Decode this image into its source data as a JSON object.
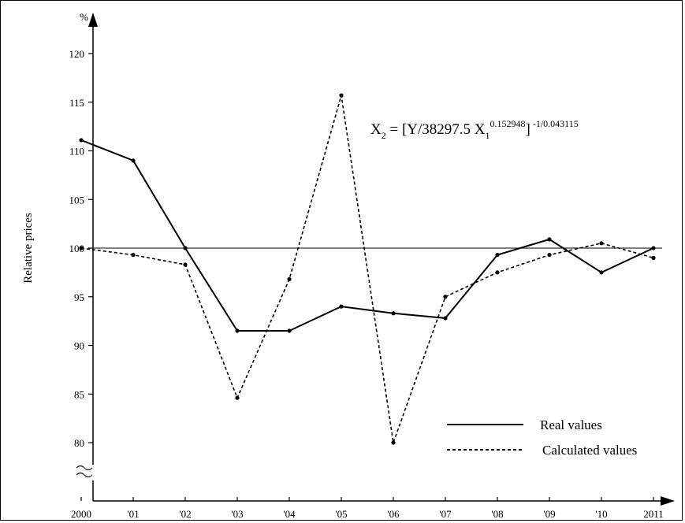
{
  "chart_data": {
    "type": "line",
    "title": "",
    "xlabel": "",
    "ylabel": "Relative prices",
    "y_unit": "%",
    "categories": [
      "2000",
      "'01",
      "'02",
      "'03",
      "'04",
      "'05",
      "'06",
      "'07",
      "'08",
      "'09",
      "'10",
      "2011"
    ],
    "ylim": [
      80,
      120
    ],
    "yticks": [
      80,
      85,
      90,
      95,
      100,
      105,
      110,
      115,
      120
    ],
    "axis_break": true,
    "reference_line": 100,
    "series": [
      {
        "name": "Real values",
        "style": "solid",
        "values": [
          111.1,
          109.0,
          100.0,
          91.5,
          91.5,
          94.0,
          93.3,
          92.8,
          99.3,
          100.9,
          97.5,
          100.0
        ]
      },
      {
        "name": "Calculated values",
        "style": "dashed",
        "values": [
          100.0,
          99.3,
          98.3,
          84.6,
          96.8,
          115.7,
          80.0,
          95.0,
          97.5,
          99.3,
          100.5,
          99.0
        ]
      }
    ],
    "annotation": {
      "base": "X",
      "base_sub": "2",
      "mid": " = [Y/38297.5 X",
      "mid_sub": "1",
      "mid_sup": "0.152948",
      "end": "]",
      "end_sup": " -1/0.043115"
    },
    "legend_position": "bottom-right",
    "grid": false,
    "color": "#000000"
  }
}
